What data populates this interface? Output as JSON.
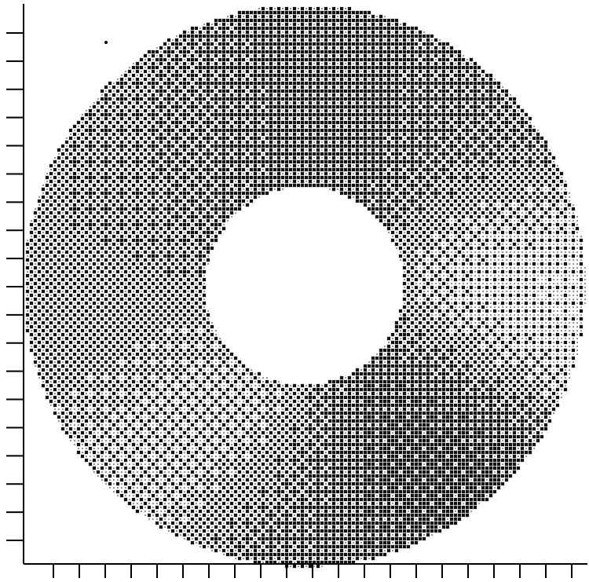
{
  "chart_data": {
    "type": "heatmap",
    "title": "",
    "xlabel": "",
    "ylabel": "",
    "colormap": "grayscale-dither",
    "shape": "annulus",
    "grid": false,
    "x_ticks": 21,
    "y_ticks": 19,
    "intensity_scale": [
      0,
      1
    ],
    "intensity_hotspots": [
      {
        "region": "top",
        "angle_deg": 90,
        "radial": 0.92,
        "level": 0.78
      },
      {
        "region": "upper-right",
        "angle_deg": 40,
        "radial": 0.82,
        "level": 0.7
      },
      {
        "region": "upper-left",
        "angle_deg": 130,
        "radial": 0.62,
        "level": 0.55
      },
      {
        "region": "inner-top-ring",
        "angle_deg": 100,
        "radial": 0.38,
        "level": 0.85
      },
      {
        "region": "left",
        "angle_deg": 185,
        "radial": 0.8,
        "level": 0.55
      },
      {
        "region": "left-lower",
        "angle_deg": 200,
        "radial": 0.6,
        "level": 0.5
      },
      {
        "region": "lower-right",
        "angle_deg": 310,
        "radial": 0.68,
        "level": 0.95
      },
      {
        "region": "bottom",
        "angle_deg": 265,
        "radial": 0.9,
        "level": 0.78
      },
      {
        "region": "right",
        "angle_deg": 0,
        "radial": 0.75,
        "level": 0.12
      },
      {
        "region": "lower-left",
        "angle_deg": 235,
        "radial": 0.65,
        "level": 0.2
      }
    ],
    "background_level": 0.3
  }
}
